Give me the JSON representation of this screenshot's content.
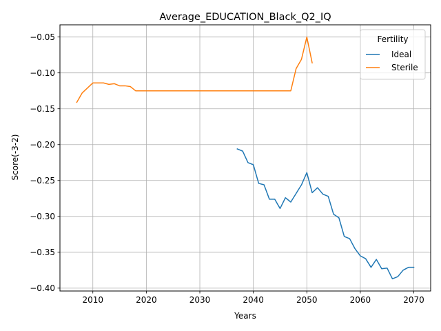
{
  "chart_data": {
    "type": "line",
    "title": "Average_EDUCATION_Black_Q2_IQ",
    "xlabel": "Years",
    "ylabel": "Score(-3-2)",
    "xlim": [
      2003.85,
      2073.15
    ],
    "ylim": [
      -0.404,
      -0.033
    ],
    "xticks": [
      2010,
      2020,
      2030,
      2040,
      2050,
      2060,
      2070
    ],
    "yticks": [
      -0.4,
      -0.35,
      -0.3,
      -0.25,
      -0.2,
      -0.15,
      -0.1,
      -0.05
    ],
    "ytick_labels": [
      "−0.40",
      "−0.35",
      "−0.30",
      "−0.25",
      "−0.20",
      "−0.15",
      "−0.10",
      "−0.05"
    ],
    "grid": true,
    "legend": {
      "title": "Fertility",
      "position": "top-right"
    },
    "series": [
      {
        "name": "Ideal",
        "color": "#1f77b4",
        "x": [
          2037,
          2038,
          2039,
          2040,
          2041,
          2042,
          2043,
          2044,
          2045,
          2046,
          2047,
          2048,
          2049,
          2050,
          2051,
          2052,
          2053,
          2054,
          2055,
          2056,
          2057,
          2058,
          2059,
          2060,
          2061,
          2062,
          2063,
          2064,
          2065,
          2066,
          2067,
          2068,
          2069,
          2070
        ],
        "y": [
          -0.206,
          -0.209,
          -0.225,
          -0.228,
          -0.254,
          -0.256,
          -0.276,
          -0.276,
          -0.289,
          -0.274,
          -0.28,
          -0.268,
          -0.256,
          -0.239,
          -0.267,
          -0.26,
          -0.269,
          -0.272,
          -0.297,
          -0.302,
          -0.328,
          -0.331,
          -0.345,
          -0.355,
          -0.359,
          -0.371,
          -0.36,
          -0.373,
          -0.372,
          -0.387,
          -0.384,
          -0.375,
          -0.371,
          -0.371
        ]
      },
      {
        "name": "Sterile",
        "color": "#ff7f0e",
        "x": [
          2007,
          2008,
          2009,
          2010,
          2011,
          2012,
          2013,
          2014,
          2015,
          2016,
          2017,
          2018,
          2019,
          2020,
          2025,
          2030,
          2035,
          2040,
          2045,
          2046,
          2047,
          2048,
          2049,
          2050,
          2051
        ],
        "y": [
          -0.141,
          -0.128,
          -0.121,
          -0.114,
          -0.114,
          -0.114,
          -0.116,
          -0.115,
          -0.118,
          -0.118,
          -0.119,
          -0.125,
          -0.125,
          -0.125,
          -0.125,
          -0.125,
          -0.125,
          -0.125,
          -0.125,
          -0.125,
          -0.125,
          -0.094,
          -0.081,
          -0.05,
          -0.086
        ]
      }
    ]
  }
}
